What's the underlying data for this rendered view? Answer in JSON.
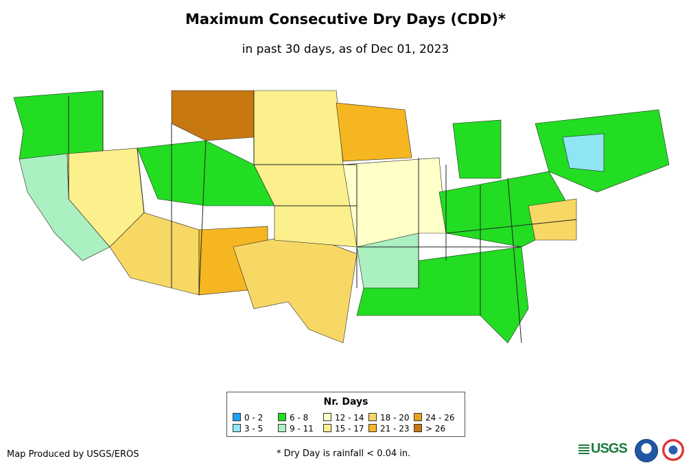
{
  "title": "Maximum Consecutive Dry Days (CDD)*",
  "subtitle": "in past 30 days, as of Dec 01, 2023",
  "legend": {
    "title": "Nr. Days",
    "items": [
      {
        "label": "0 - 2",
        "color": "#1aa3f0"
      },
      {
        "label": "3 - 5",
        "color": "#8ee6f4"
      },
      {
        "label": "6 - 8",
        "color": "#22dd22"
      },
      {
        "label": "9 - 11",
        "color": "#aaf0c0"
      },
      {
        "label": "12 - 14",
        "color": "#ffffc8"
      },
      {
        "label": "15 - 17",
        "color": "#fbf08c"
      },
      {
        "label": "18 - 20",
        "color": "#f8d865"
      },
      {
        "label": "21 - 23",
        "color": "#f5b621"
      },
      {
        "label": "24 - 26",
        "color": "#e9a21a"
      },
      {
        "label": "> 26",
        "color": "#c87810"
      }
    ]
  },
  "credit": "Map Produced by USGS/EROS",
  "footnote": "* Dry Day is rainfall < 0.04 in.",
  "logos": {
    "usgs": "USGS",
    "noaa": "noaa"
  },
  "regions": [
    {
      "name": "pacific-northwest",
      "class": "6 - 8"
    },
    {
      "name": "california-coast",
      "class": "9 - 11"
    },
    {
      "name": "great-basin",
      "class": "15 - 17"
    },
    {
      "name": "desert-southwest",
      "class": "18 - 20"
    },
    {
      "name": "montana-east",
      "class": "> 26"
    },
    {
      "name": "northern-plains",
      "class": "15 - 17"
    },
    {
      "name": "colorado-rockies",
      "class": "6 - 8"
    },
    {
      "name": "new-mexico",
      "class": "21 - 23"
    },
    {
      "name": "texas",
      "class": "18 - 20"
    },
    {
      "name": "central-plains",
      "class": "15 - 17"
    },
    {
      "name": "midwest",
      "class": "12 - 14"
    },
    {
      "name": "arkansas",
      "class": "9 - 11"
    },
    {
      "name": "southeast",
      "class": "6 - 8"
    },
    {
      "name": "appalachia",
      "class": "6 - 8"
    },
    {
      "name": "northeast",
      "class": "6 - 8"
    },
    {
      "name": "new-york",
      "class": "3 - 5"
    },
    {
      "name": "michigan",
      "class": "6 - 8"
    },
    {
      "name": "minnesota-wisconsin",
      "class": "21 - 23"
    },
    {
      "name": "mid-atlantic",
      "class": "18 - 20"
    }
  ]
}
